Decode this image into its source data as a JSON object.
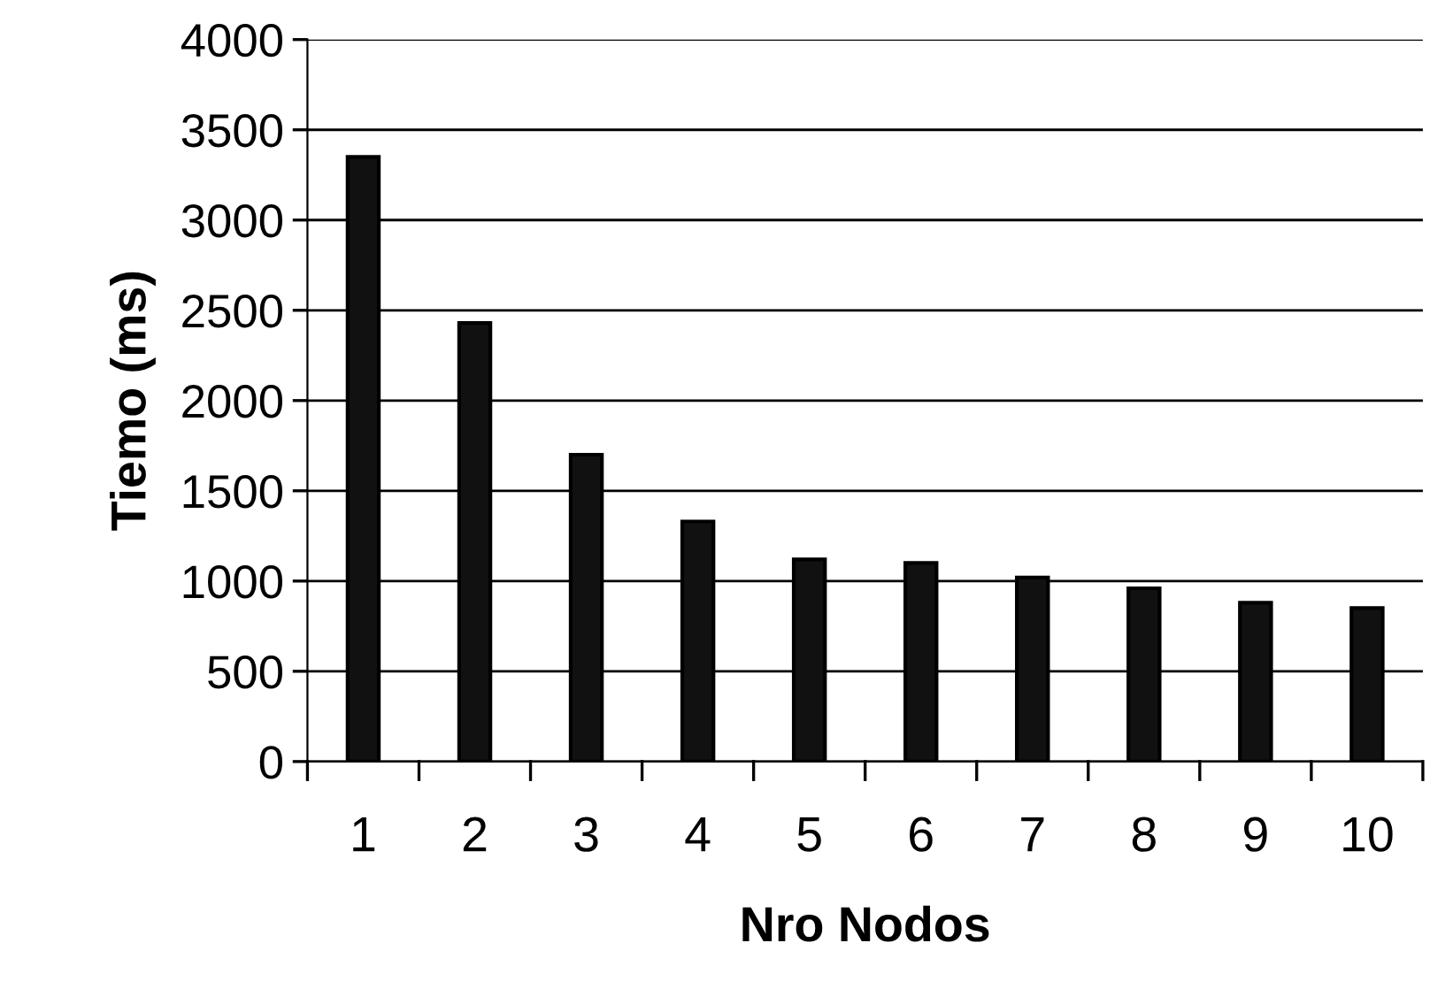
{
  "chart_data": {
    "type": "bar",
    "xlabel": "Nro Nodos",
    "ylabel": "Tiemo (ms)",
    "categories": [
      "1",
      "2",
      "3",
      "4",
      "5",
      "6",
      "7",
      "8",
      "9",
      "10"
    ],
    "values": [
      3350,
      2430,
      1700,
      1330,
      1120,
      1100,
      1020,
      960,
      880,
      850
    ],
    "color": "#111111",
    "ylim": [
      0,
      4000
    ],
    "yticks": [
      0,
      500,
      1000,
      1500,
      2000,
      2500,
      3000,
      3500,
      4000
    ],
    "grid": "y",
    "legend": false
  }
}
